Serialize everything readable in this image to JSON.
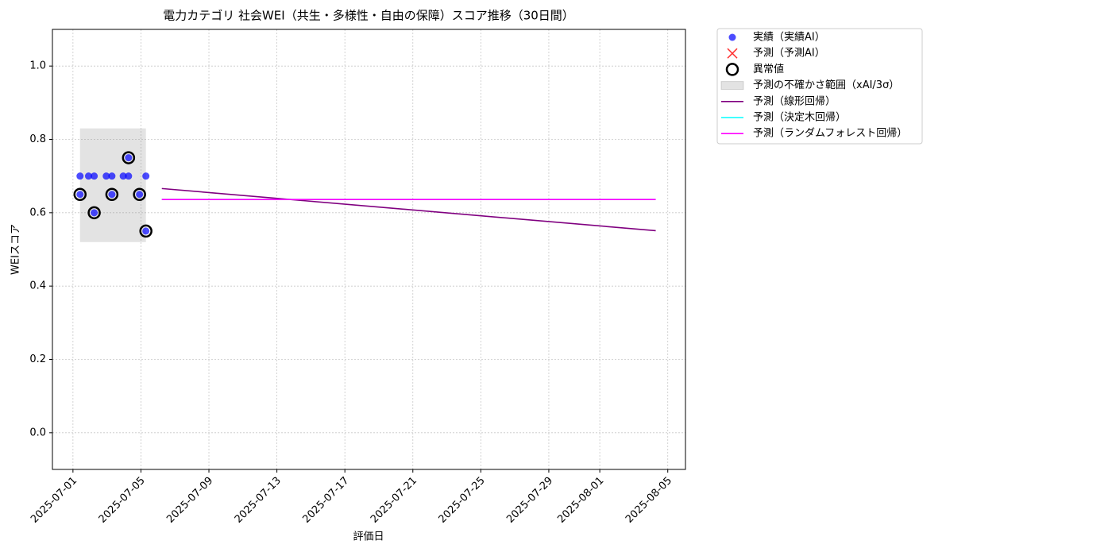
{
  "chart_data": {
    "type": "scatter",
    "title": "電力カテゴリ 社会WEI（共生・多様性・自由の保障）スコア推移（30日間）",
    "xlabel": "評価日",
    "ylabel": "WEIスコア",
    "xlim": [
      "2025-06-29T19:00",
      "2025-08-06T01:00"
    ],
    "ylim": [
      -0.1,
      1.1
    ],
    "xticks": [
      "2025-07-01",
      "2025-07-05",
      "2025-07-09",
      "2025-07-13",
      "2025-07-17",
      "2025-07-21",
      "2025-07-25",
      "2025-07-29",
      "2025-08-01",
      "2025-08-05"
    ],
    "yticks": [
      {
        "value": 0,
        "label": "0.0"
      },
      {
        "value": 0.2,
        "label": "0.2"
      },
      {
        "value": 0.4,
        "label": "0.4"
      },
      {
        "value": 0.6,
        "label": "0.6"
      },
      {
        "value": 0.8,
        "label": "0.8"
      },
      {
        "value": 1,
        "label": "1.0"
      }
    ],
    "grid": true,
    "legend_loc": "outside upper right",
    "series": [
      {
        "name": "実績（実績AI）",
        "type": "scatter",
        "color": "#0000ff",
        "x": [
          "2025-07-01T10:00",
          "2025-07-01T10:00",
          "2025-07-01T22:00",
          "2025-07-02T06:00",
          "2025-07-02T06:00",
          "2025-07-02T23:00",
          "2025-07-03T07:00",
          "2025-07-03T07:00",
          "2025-07-03T23:00",
          "2025-07-04T06:30",
          "2025-07-04T06:30",
          "2025-07-04T22:00",
          "2025-07-05T07:00",
          "2025-07-05T07:00"
        ],
        "values": [
          0.7,
          0.65,
          0.7,
          0.7,
          0.6,
          0.7,
          0.7,
          0.65,
          0.7,
          0.7,
          0.75,
          0.65,
          0.7,
          0.55
        ]
      },
      {
        "name": "予測（予測AI）",
        "type": "cross",
        "color": "#ff0000",
        "x": [],
        "values": []
      },
      {
        "name": "異常値",
        "type": "outlier",
        "color": "#000000",
        "x": [
          "2025-07-01T10:00",
          "2025-07-02T06:00",
          "2025-07-03T07:00",
          "2025-07-04T06:30",
          "2025-07-04T22:00",
          "2025-07-05T07:00"
        ],
        "values": [
          0.65,
          0.6,
          0.65,
          0.75,
          0.65,
          0.55
        ]
      },
      {
        "name": "予測の不確かさ範囲（xAI/3σ）",
        "type": "band",
        "color": "#808080",
        "x": [
          "2025-07-01T10:00",
          "2025-07-05T07:00"
        ],
        "lower": [
          0.52,
          0.52
        ],
        "upper": [
          0.83,
          0.83
        ]
      },
      {
        "name": "予測（線形回帰）",
        "type": "line",
        "color": "#800080",
        "x": [
          "2025-07-06T05:30",
          "2025-08-04T07:00"
        ],
        "values": [
          0.666,
          0.551
        ]
      },
      {
        "name": "予測（決定木回帰）",
        "type": "line",
        "color": "#00ffff",
        "x": [
          "2025-07-06T05:30",
          "2025-08-04T07:00"
        ],
        "values": [
          0.636,
          0.636
        ]
      },
      {
        "name": "予測（ランダムフォレスト回帰）",
        "type": "line",
        "color": "#ff00ff",
        "x": [
          "2025-07-06T05:30",
          "2025-08-04T07:00"
        ],
        "values": [
          0.636,
          0.636
        ]
      }
    ]
  }
}
